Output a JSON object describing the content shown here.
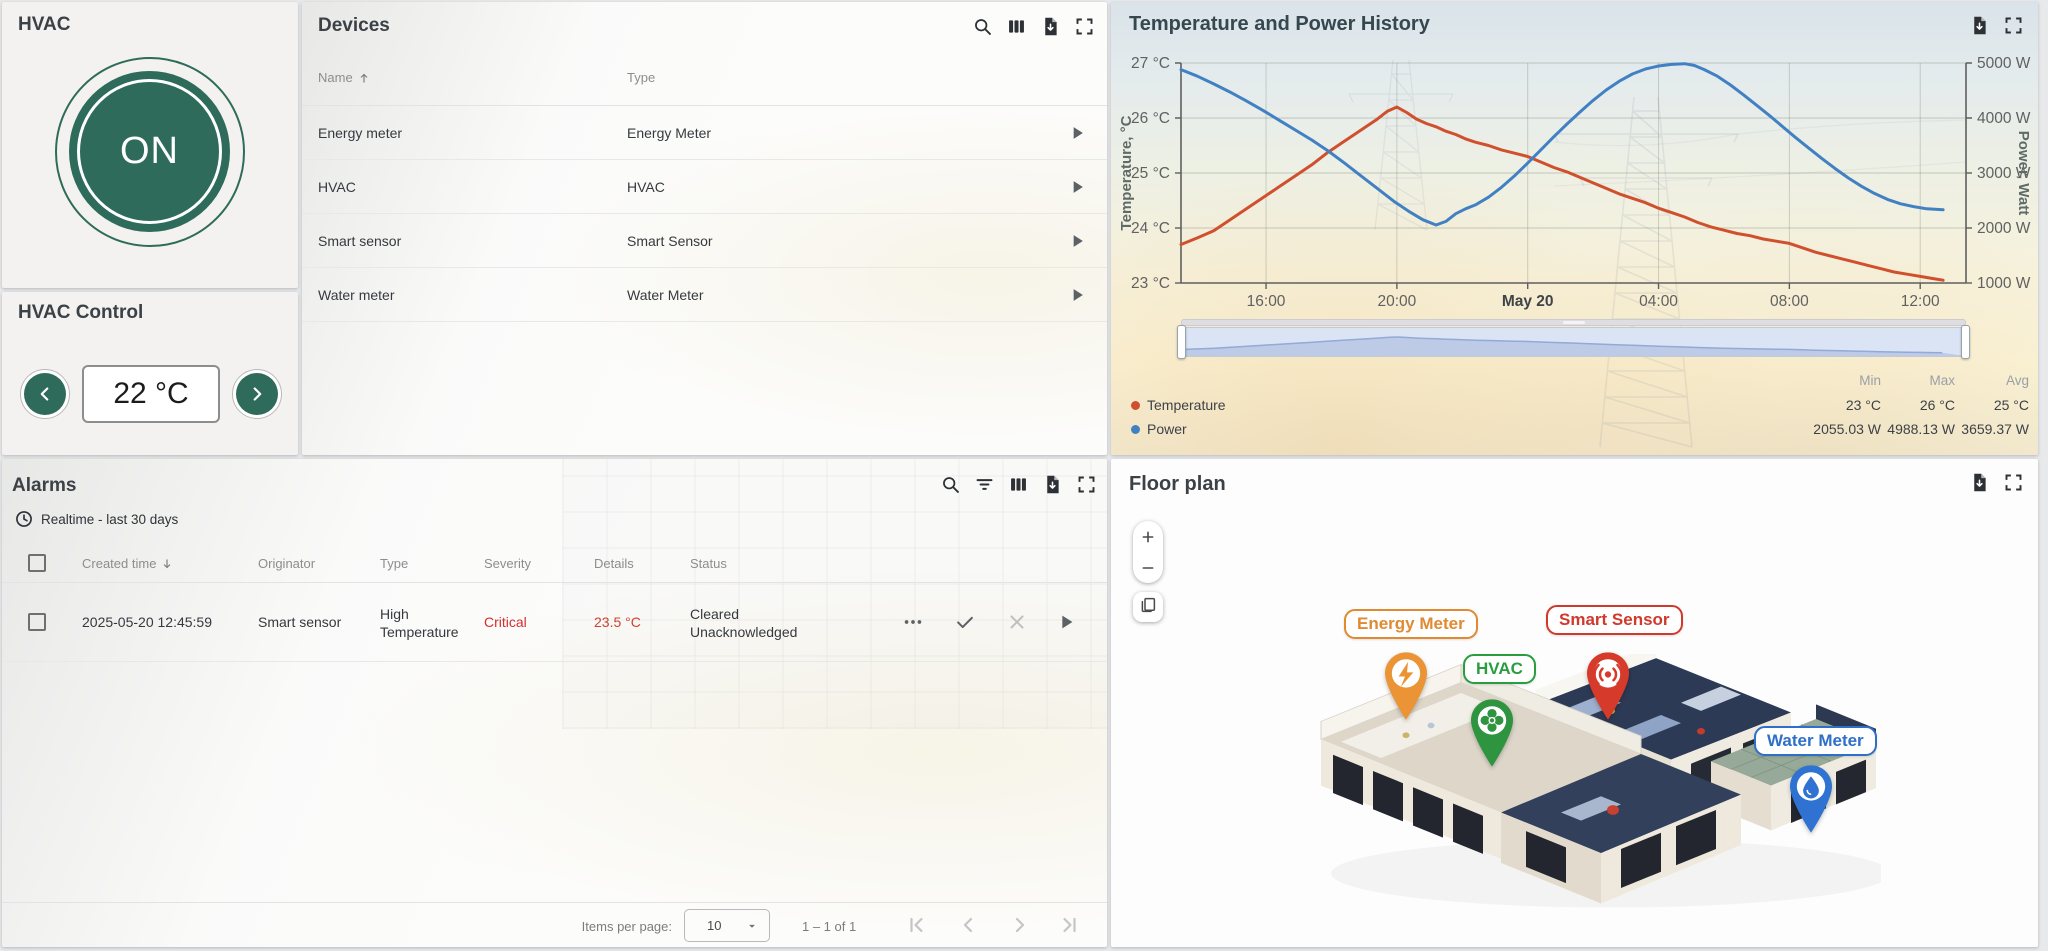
{
  "hvac": {
    "title": "HVAC",
    "power_state": "ON"
  },
  "hvac_control": {
    "title": "HVAC Control",
    "temperature_setpoint": "22 °C"
  },
  "devices": {
    "title": "Devices",
    "columns": {
      "name": "Name",
      "type": "Type"
    },
    "rows": [
      {
        "name": "Energy meter",
        "type": "Energy Meter"
      },
      {
        "name": "HVAC",
        "type": "HVAC"
      },
      {
        "name": "Smart sensor",
        "type": "Smart Sensor"
      },
      {
        "name": "Water meter",
        "type": "Water Meter"
      }
    ]
  },
  "alarms": {
    "title": "Alarms",
    "subtitle": "Realtime - last 30 days",
    "columns": {
      "created_time": "Created time",
      "originator": "Originator",
      "type": "Type",
      "severity": "Severity",
      "details": "Details",
      "status": "Status"
    },
    "rows": [
      {
        "created_time": "2025-05-20 12:45:59",
        "originator": "Smart sensor",
        "type_line1": "High",
        "type_line2": "Temperature",
        "severity": "Critical",
        "details": "23.5 °C",
        "status_line1": "Cleared",
        "status_line2": "Unacknowledged"
      }
    ],
    "severity_color": "#d32f2f",
    "details_color": "#d3412e"
  },
  "pagination": {
    "items_per_page_label": "Items per page:",
    "page_size": "10",
    "range_label": "1 – 1 of 1"
  },
  "floorplan": {
    "title": "Floor plan",
    "markers": [
      {
        "id": "energy-meter",
        "label": "Energy Meter",
        "color": "#e08a31",
        "pin_color": "#ea9435",
        "icon": "bolt"
      },
      {
        "id": "hvac",
        "label": "HVAC",
        "color": "#2a9d3f",
        "pin_color": "#2f9440",
        "icon": "fan"
      },
      {
        "id": "smart-sensor",
        "label": "Smart Sensor",
        "color": "#d0392b",
        "pin_color": "#d63a2a",
        "icon": "radio"
      },
      {
        "id": "water-meter",
        "label": "Water Meter",
        "color": "#2e6fc9",
        "pin_color": "#2f72d2",
        "icon": "drop"
      }
    ]
  },
  "chart_data": {
    "type": "line",
    "title": "Temperature and Power History",
    "x_axis": {
      "span_hours": 24,
      "window": "May 19 ~13:24 to May 20 ~13:24",
      "ticks": [
        {
          "t": 2.6,
          "label": "16:00"
        },
        {
          "t": 6.6,
          "label": "20:00"
        },
        {
          "t": 10.6,
          "label": "May 20",
          "emphasis": true
        },
        {
          "t": 14.6,
          "label": "04:00"
        },
        {
          "t": 18.6,
          "label": "08:00"
        },
        {
          "t": 22.6,
          "label": "12:00"
        }
      ]
    },
    "y_left": {
      "label": "Temperature, °C",
      "min": 23,
      "max": 27,
      "ticks": [
        "27 °C",
        "26 °C",
        "25 °C",
        "24 °C",
        "23 °C"
      ]
    },
    "y_right": {
      "label": "Power, Watt",
      "min": 1000,
      "max": 5000,
      "ticks": [
        "5000 W",
        "4000 W",
        "3000 W",
        "2000 W",
        "1000 W"
      ]
    },
    "grid": true,
    "legend_position": "bottom",
    "series": [
      {
        "name": "Temperature",
        "axis": "left",
        "color": "#d0502e",
        "points": [
          [
            0,
            23.7
          ],
          [
            0.5,
            23.82
          ],
          [
            1,
            23.95
          ],
          [
            1.5,
            24.15
          ],
          [
            2,
            24.35
          ],
          [
            2.5,
            24.55
          ],
          [
            3,
            24.75
          ],
          [
            3.5,
            24.95
          ],
          [
            4,
            25.15
          ],
          [
            4.5,
            25.38
          ],
          [
            5,
            25.58
          ],
          [
            5.5,
            25.78
          ],
          [
            6,
            25.98
          ],
          [
            6.3,
            26.12
          ],
          [
            6.6,
            26.2
          ],
          [
            6.9,
            26.1
          ],
          [
            7.2,
            25.98
          ],
          [
            7.5,
            25.9
          ],
          [
            7.8,
            25.84
          ],
          [
            8.1,
            25.76
          ],
          [
            8.4,
            25.7
          ],
          [
            8.7,
            25.62
          ],
          [
            9,
            25.56
          ],
          [
            9.4,
            25.5
          ],
          [
            9.8,
            25.42
          ],
          [
            10.2,
            25.36
          ],
          [
            10.6,
            25.3
          ],
          [
            11,
            25.2
          ],
          [
            11.4,
            25.1
          ],
          [
            11.8,
            25.02
          ],
          [
            12.2,
            24.92
          ],
          [
            12.6,
            24.82
          ],
          [
            13,
            24.72
          ],
          [
            13.4,
            24.62
          ],
          [
            13.8,
            24.54
          ],
          [
            14.2,
            24.46
          ],
          [
            14.6,
            24.36
          ],
          [
            15,
            24.28
          ],
          [
            15.4,
            24.2
          ],
          [
            15.8,
            24.1
          ],
          [
            16.2,
            24.02
          ],
          [
            16.6,
            23.96
          ],
          [
            17,
            23.9
          ],
          [
            17.4,
            23.86
          ],
          [
            17.8,
            23.8
          ],
          [
            18.2,
            23.76
          ],
          [
            18.6,
            23.72
          ],
          [
            19,
            23.64
          ],
          [
            19.4,
            23.56
          ],
          [
            19.8,
            23.5
          ],
          [
            20.2,
            23.44
          ],
          [
            20.6,
            23.38
          ],
          [
            21,
            23.32
          ],
          [
            21.4,
            23.26
          ],
          [
            21.8,
            23.2
          ],
          [
            22.2,
            23.16
          ],
          [
            22.6,
            23.12
          ],
          [
            23,
            23.08
          ],
          [
            23.3,
            23.05
          ]
        ]
      },
      {
        "name": "Power",
        "axis": "right",
        "color": "#4181c3",
        "points": [
          [
            0,
            4880
          ],
          [
            0.5,
            4760
          ],
          [
            1,
            4620
          ],
          [
            1.5,
            4470
          ],
          [
            2,
            4310
          ],
          [
            2.5,
            4140
          ],
          [
            3,
            3960
          ],
          [
            3.5,
            3780
          ],
          [
            4,
            3600
          ],
          [
            4.5,
            3400
          ],
          [
            5,
            3180
          ],
          [
            5.5,
            2950
          ],
          [
            6,
            2720
          ],
          [
            6.5,
            2490
          ],
          [
            7,
            2290
          ],
          [
            7.4,
            2150
          ],
          [
            7.8,
            2055
          ],
          [
            8.1,
            2120
          ],
          [
            8.4,
            2260
          ],
          [
            8.7,
            2350
          ],
          [
            9,
            2420
          ],
          [
            9.4,
            2560
          ],
          [
            9.8,
            2740
          ],
          [
            10.2,
            2950
          ],
          [
            10.6,
            3180
          ],
          [
            11,
            3420
          ],
          [
            11.4,
            3660
          ],
          [
            11.8,
            3890
          ],
          [
            12.2,
            4110
          ],
          [
            12.6,
            4320
          ],
          [
            13,
            4510
          ],
          [
            13.4,
            4670
          ],
          [
            13.8,
            4800
          ],
          [
            14.2,
            4890
          ],
          [
            14.6,
            4945
          ],
          [
            15,
            4975
          ],
          [
            15.4,
            4988
          ],
          [
            15.7,
            4955
          ],
          [
            16,
            4880
          ],
          [
            16.4,
            4760
          ],
          [
            16.8,
            4600
          ],
          [
            17.2,
            4420
          ],
          [
            17.6,
            4230
          ],
          [
            18,
            4040
          ],
          [
            18.4,
            3840
          ],
          [
            18.8,
            3640
          ],
          [
            19.2,
            3450
          ],
          [
            19.6,
            3260
          ],
          [
            20,
            3080
          ],
          [
            20.4,
            2910
          ],
          [
            20.8,
            2760
          ],
          [
            21.2,
            2630
          ],
          [
            21.6,
            2520
          ],
          [
            22,
            2440
          ],
          [
            22.4,
            2390
          ],
          [
            22.8,
            2350
          ],
          [
            23.3,
            2330
          ]
        ]
      }
    ],
    "legend": {
      "columns": [
        "Min",
        "Max",
        "Avg"
      ],
      "rows": [
        {
          "name": "Temperature",
          "color": "#d0502e",
          "min": "23 °C",
          "max": "26 °C",
          "avg": "25 °C"
        },
        {
          "name": "Power",
          "color": "#4181c3",
          "min": "2055.03 W",
          "max": "4988.13 W",
          "avg": "3659.37 W"
        }
      ]
    }
  }
}
